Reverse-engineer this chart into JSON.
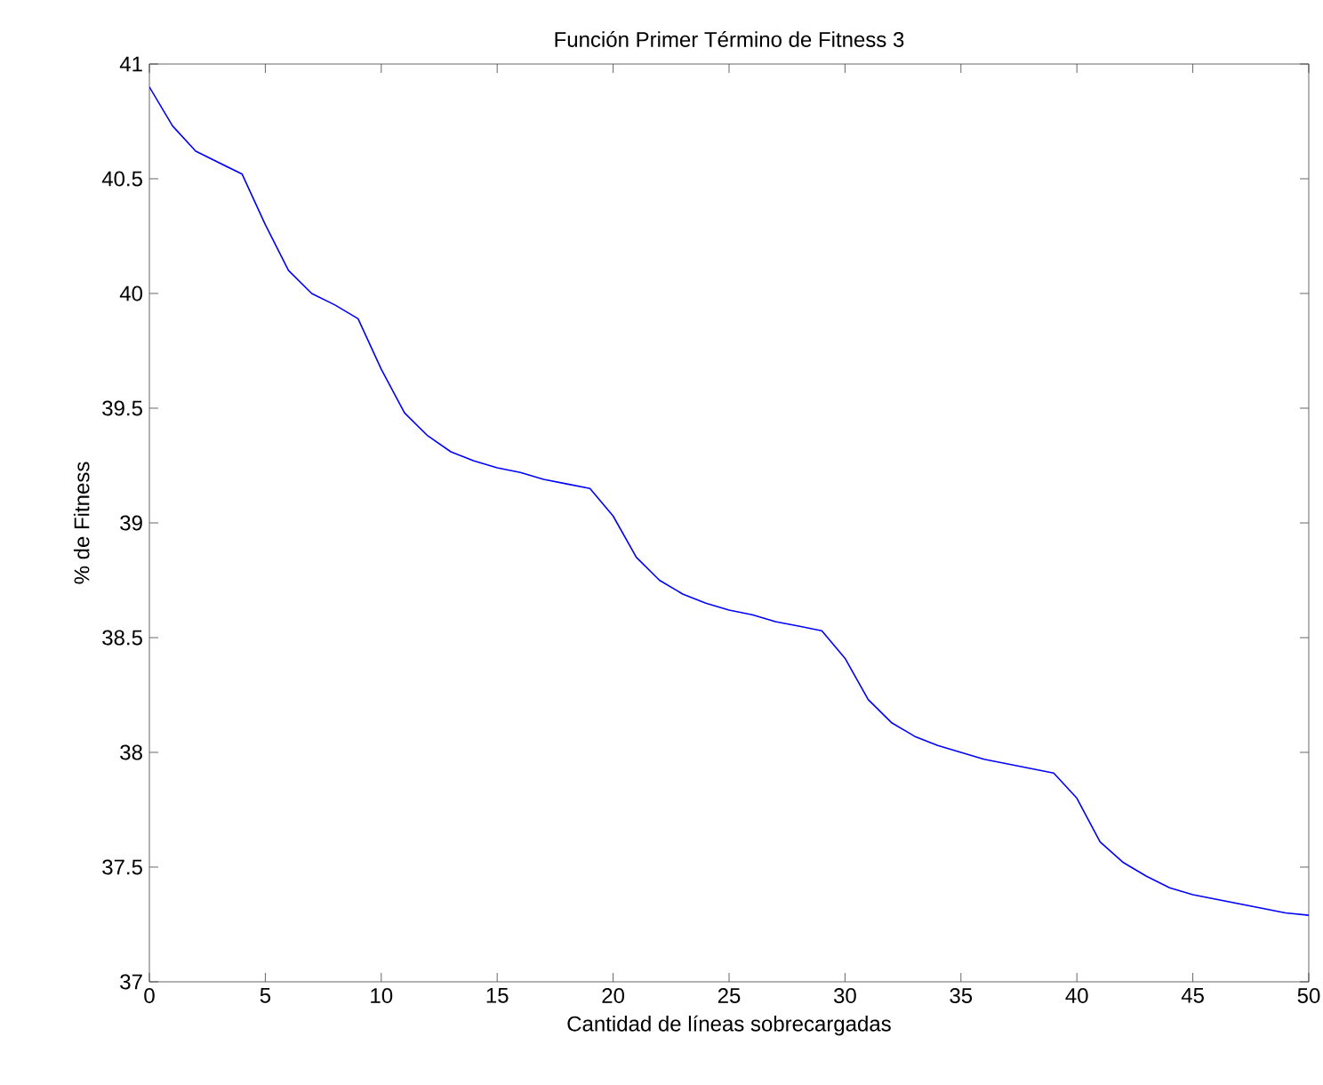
{
  "chart_data": {
    "type": "line",
    "title": "Función Primer Término de Fitness 3",
    "xlabel": "Cantidad de líneas sobrecargadas",
    "ylabel": "% de Fitness",
    "x": [
      0,
      1,
      2,
      3,
      4,
      5,
      6,
      7,
      8,
      9,
      10,
      11,
      12,
      13,
      14,
      15,
      16,
      17,
      18,
      19,
      20,
      21,
      22,
      23,
      24,
      25,
      26,
      27,
      28,
      29,
      30,
      31,
      32,
      33,
      34,
      35,
      36,
      37,
      38,
      39,
      40,
      41,
      42,
      43,
      44,
      45,
      46,
      47,
      48,
      49,
      50
    ],
    "series": [
      {
        "color": "#0000ff",
        "values": [
          40.9,
          40.73,
          40.62,
          40.57,
          40.52,
          40.3,
          40.1,
          40.0,
          39.95,
          39.89,
          39.67,
          39.48,
          39.38,
          39.31,
          39.27,
          39.24,
          39.22,
          39.19,
          39.17,
          39.15,
          39.03,
          38.85,
          38.75,
          38.69,
          38.65,
          38.62,
          38.6,
          38.57,
          38.55,
          38.53,
          38.41,
          38.23,
          38.13,
          38.07,
          38.03,
          38.0,
          37.97,
          37.95,
          37.93,
          37.91,
          37.8,
          37.61,
          37.52,
          37.46,
          37.41,
          37.38,
          37.36,
          37.34,
          37.32,
          37.3,
          37.29
        ]
      }
    ],
    "xlim": [
      0,
      50
    ],
    "ylim": [
      37,
      41
    ],
    "xticks": [
      0,
      5,
      10,
      15,
      20,
      25,
      30,
      35,
      40,
      45,
      50
    ],
    "yticks": [
      37,
      {
        "value": 37.5,
        "label": "37.5"
      },
      38,
      {
        "value": 38.5,
        "label": "38.5"
      },
      39,
      {
        "value": 39.5,
        "label": "39.5"
      },
      40,
      {
        "value": 40.5,
        "label": "40.5"
      },
      41
    ],
    "grid": false,
    "marker": "none",
    "line_style": "solid"
  }
}
